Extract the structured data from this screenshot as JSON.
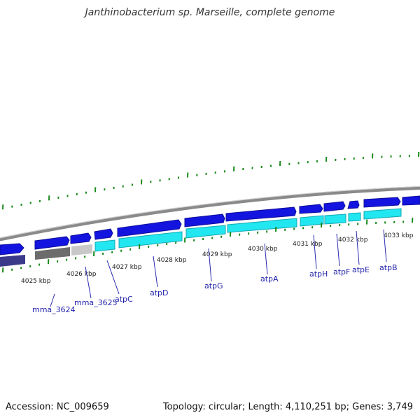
{
  "title": "Janthinobacterium sp. Marseille, complete genome",
  "accession": "Accession: NC_009659",
  "summary": "Topology: circular; Length: 4,110,251 bp; Genes: 3,749",
  "colors": {
    "backbone": "#8a8a8a",
    "gene_forward": "#1414e0",
    "gene_forward_dark": "#0c0c9a",
    "gene_reverse_dark": "#3b3a8a",
    "cds_cyan": "#22e6f0",
    "cds_grey_dark": "#6c6c6c",
    "cds_grey_light": "#c8c8c8",
    "tick": "#1a8a1a",
    "label_line": "#2a2ab0"
  },
  "kbp_labels": [
    "4025 kbp",
    "4026 kbp",
    "4027 kbp",
    "4028 kbp",
    "4029 kbp",
    "4030 kbp",
    "4031 kbp",
    "4032 kbp",
    "4033 kbp"
  ],
  "genes": [
    "mma_3624",
    "mma_3625",
    "atpC",
    "atpD",
    "atpG",
    "atpA",
    "atpH",
    "atpF",
    "atpE",
    "atpB"
  ]
}
